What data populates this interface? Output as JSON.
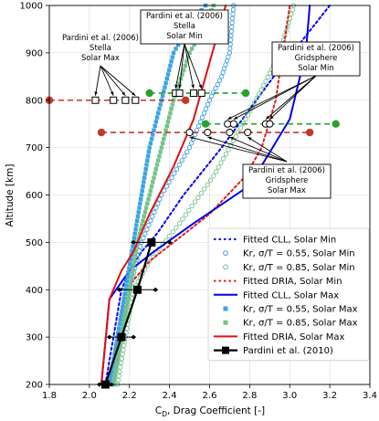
{
  "chart_data": {
    "type": "line",
    "xlabel": "C_D, Drag Coefficient [-]",
    "xlabel_main": "C",
    "xlabel_sub": "D",
    "xlabel_rest": ", Drag Coefficient [-]",
    "ylabel": "Altitude [km]",
    "xlim": [
      1.8,
      3.4
    ],
    "ylim": [
      200,
      1000
    ],
    "xticks": [
      "1.8",
      "2.0",
      "2.2",
      "2.4",
      "2.6",
      "2.8",
      "3.0",
      "3.2",
      "3.4"
    ],
    "yticks": [
      "200",
      "300",
      "400",
      "500",
      "600",
      "700",
      "800",
      "900",
      "1000"
    ],
    "grid": true,
    "legend_position": "lower right",
    "series": [
      {
        "name": "Fitted CLL, Solar Min",
        "style": "dotted",
        "color": "#0000ff",
        "x": [
          2.08,
          2.12,
          2.16,
          2.2,
          2.26,
          2.34,
          2.47,
          2.66,
          2.92,
          3.2
        ],
        "y": [
          200,
          300,
          400,
          440,
          480,
          520,
          600,
          700,
          850,
          1000
        ]
      },
      {
        "name": "Kr, σ/T = 0.55, Solar Min",
        "style": "marker-hollow",
        "color": "#3a9fe0",
        "x": [
          2.12,
          2.2,
          2.26,
          2.36,
          2.5,
          2.6,
          2.66,
          2.7,
          2.72
        ],
        "y": [
          200,
          400,
          500,
          600,
          700,
          800,
          850,
          900,
          1000
        ]
      },
      {
        "name": "Kr, σ/T = 0.85, Solar Min",
        "style": "marker-hollow",
        "color": "#74c28a",
        "x": [
          2.14,
          2.22,
          2.3,
          2.45,
          2.62,
          2.78,
          2.88,
          2.95,
          3.02
        ],
        "y": [
          200,
          400,
          460,
          540,
          640,
          760,
          840,
          900,
          1000
        ]
      },
      {
        "name": "Fitted DRIA, Solar Min",
        "style": "dotted",
        "color": "#e02020",
        "x": [
          2.1,
          2.18,
          2.3,
          2.42,
          2.6,
          2.78,
          2.86,
          2.93,
          3.0
        ],
        "y": [
          200,
          400,
          460,
          500,
          560,
          640,
          700,
          800,
          1000
        ]
      },
      {
        "name": "Fitted CLL, Solar Max",
        "style": "solid",
        "color": "#0000ee",
        "x": [
          2.06,
          2.1,
          2.2,
          2.32,
          2.52,
          2.8,
          3.0,
          3.08,
          3.1
        ],
        "y": [
          200,
          380,
          440,
          480,
          540,
          620,
          760,
          900,
          1000
        ]
      },
      {
        "name": "Kr, σ/T = 0.55, Solar Max",
        "style": "marker-filled",
        "color": "#3aa4e6",
        "x": [
          2.1,
          2.14,
          2.18,
          2.22,
          2.26,
          2.3,
          2.36,
          2.42,
          2.5,
          2.58
        ],
        "y": [
          200,
          300,
          400,
          500,
          600,
          700,
          800,
          900,
          960,
          1000
        ]
      },
      {
        "name": "Kr, σ/T = 0.85, Solar Max",
        "style": "marker-filled",
        "color": "#74c28a",
        "x": [
          2.12,
          2.16,
          2.2,
          2.24,
          2.3,
          2.36,
          2.42,
          2.5,
          2.58,
          2.62
        ],
        "y": [
          200,
          300,
          400,
          500,
          600,
          700,
          800,
          900,
          960,
          1000
        ]
      },
      {
        "name": "Fitted DRIA, Solar Max",
        "style": "solid",
        "color": "#e01010",
        "x": [
          2.06,
          2.1,
          2.16,
          2.22,
          2.3,
          2.42,
          2.52,
          2.6,
          2.68
        ],
        "y": [
          200,
          380,
          440,
          480,
          560,
          660,
          760,
          880,
          1000
        ]
      },
      {
        "name": "Pardini et al. (2010)",
        "style": "line-square",
        "color": "#000000",
        "x": [
          2.08,
          2.16,
          2.24,
          2.31
        ],
        "y": [
          200,
          300,
          400,
          500
        ],
        "xerr": [
          0.03,
          0.06,
          0.09,
          0.09
        ]
      }
    ],
    "pardini_2006_dashed": [
      {
        "label_id": "stella_max",
        "color": "#c0392b",
        "y": 800,
        "x_start": 1.8,
        "x_end": 2.48,
        "markers_x": [
          2.03,
          2.12,
          2.18,
          2.23
        ],
        "marker": "square"
      },
      {
        "label_id": "stella_min",
        "color": "#2ca02c",
        "y": 815,
        "x_start": 2.3,
        "x_end": 2.78,
        "markers_x": [
          2.43,
          2.45,
          2.52,
          2.56
        ],
        "marker": "square"
      },
      {
        "label_id": "grid_max",
        "color": "#c0392b",
        "y": 732,
        "x_start": 2.06,
        "x_end": 3.1,
        "markers_x": [
          2.5,
          2.59,
          2.7,
          2.79
        ],
        "marker": "circle"
      },
      {
        "label_id": "grid_min",
        "color": "#2ca02c",
        "y": 750,
        "x_start": 2.58,
        "x_end": 3.23,
        "markers_x": [
          2.69,
          2.72,
          2.88,
          2.9
        ],
        "marker": "circle"
      }
    ],
    "annotations": {
      "stella_max": [
        "Pardini et al. (2006)",
        "Stella",
        "Solar Max"
      ],
      "stella_min": [
        "Pardini et al. (2006)",
        "Stella",
        "Solar Min"
      ],
      "grid_min": [
        "Pardini et al. (2006)",
        "Gridsphere",
        "Solar Min"
      ],
      "grid_max": [
        "Pardini et al. (2006)",
        "Gridsphere",
        "Solar Max"
      ]
    }
  }
}
